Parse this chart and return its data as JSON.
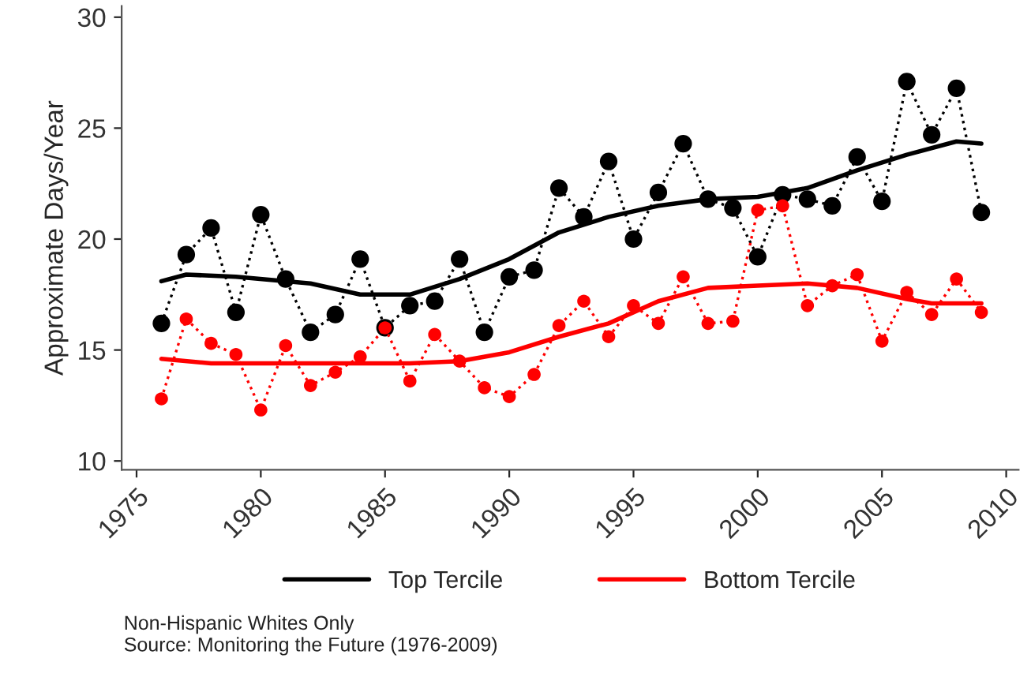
{
  "chart_data": {
    "type": "line",
    "ylabel": "Approximate Days/Year",
    "xlim": [
      1974.4,
      2010.5
    ],
    "xticks": [
      1975,
      1980,
      1985,
      1990,
      1995,
      2000,
      2005,
      2010
    ],
    "ylim": [
      9.6,
      30.5
    ],
    "yticks": [
      10,
      15,
      20,
      25,
      30
    ],
    "grid": false,
    "legend": "bottom",
    "series": [
      {
        "color": "#000000",
        "marker": "circle",
        "line_style": "dotted",
        "x": [
          1976,
          1977,
          1978,
          1979,
          1980,
          1981,
          1982,
          1983,
          1984,
          1985,
          1986,
          1987,
          1988,
          1989,
          1990,
          1991,
          1992,
          1993,
          1994,
          1995,
          1996,
          1997,
          1998,
          1999,
          2000,
          2001,
          2002,
          2003,
          2004,
          2005,
          2006,
          2007,
          2008,
          2009
        ],
        "values": [
          16.2,
          19.3,
          20.5,
          16.7,
          21.1,
          18.2,
          15.8,
          16.6,
          19.1,
          16.0,
          17.0,
          17.2,
          19.1,
          15.8,
          18.3,
          18.6,
          22.3,
          21.0,
          23.5,
          20.0,
          22.1,
          24.3,
          21.8,
          21.4,
          19.2,
          22.0,
          21.8,
          21.5,
          23.7,
          21.7,
          27.1,
          24.7,
          26.8,
          21.2
        ]
      },
      {
        "color": "#ff0000",
        "marker": "circle",
        "line_style": "dotted",
        "x": [
          1976,
          1977,
          1978,
          1979,
          1980,
          1981,
          1982,
          1983,
          1984,
          1985,
          1986,
          1987,
          1988,
          1989,
          1990,
          1991,
          1992,
          1993,
          1994,
          1995,
          1996,
          1997,
          1998,
          1999,
          2000,
          2001,
          2002,
          2003,
          2004,
          2005,
          2006,
          2007,
          2008,
          2009
        ],
        "values": [
          12.8,
          16.4,
          15.3,
          14.8,
          12.3,
          15.2,
          13.4,
          14.0,
          14.7,
          16.0,
          13.6,
          15.7,
          14.5,
          13.3,
          12.9,
          13.9,
          16.1,
          17.2,
          15.6,
          17.0,
          16.2,
          18.3,
          16.2,
          16.3,
          21.3,
          21.5,
          17.0,
          17.9,
          18.4,
          15.4,
          17.6,
          16.6,
          18.2,
          16.7
        ]
      },
      {
        "name": "Top Tercile",
        "color": "#000000",
        "marker": "none",
        "line_style": "solid",
        "x": [
          1976,
          1977,
          1979,
          1982,
          1984,
          1986,
          1988,
          1990,
          1992,
          1994,
          1996,
          1998,
          2000,
          2002,
          2004,
          2006,
          2008,
          2009
        ],
        "values": [
          18.1,
          18.4,
          18.3,
          18.0,
          17.5,
          17.5,
          18.2,
          19.1,
          20.3,
          21.0,
          21.5,
          21.8,
          21.9,
          22.3,
          23.1,
          23.8,
          24.4,
          24.3
        ]
      },
      {
        "name": "Bottom Tercile",
        "color": "#ff0000",
        "marker": "none",
        "line_style": "solid",
        "x": [
          1976,
          1978,
          1982,
          1986,
          1988,
          1990,
          1992,
          1994,
          1996,
          1998,
          2000,
          2002,
          2004,
          2006,
          2007,
          2009
        ],
        "values": [
          14.6,
          14.4,
          14.4,
          14.4,
          14.5,
          14.9,
          15.6,
          16.2,
          17.2,
          17.8,
          17.9,
          18.0,
          17.8,
          17.3,
          17.1,
          17.1
        ]
      }
    ],
    "annotations": [
      "Non-Hispanic Whites Only",
      "Source: Monitoring the Future (1976-2009)"
    ]
  }
}
